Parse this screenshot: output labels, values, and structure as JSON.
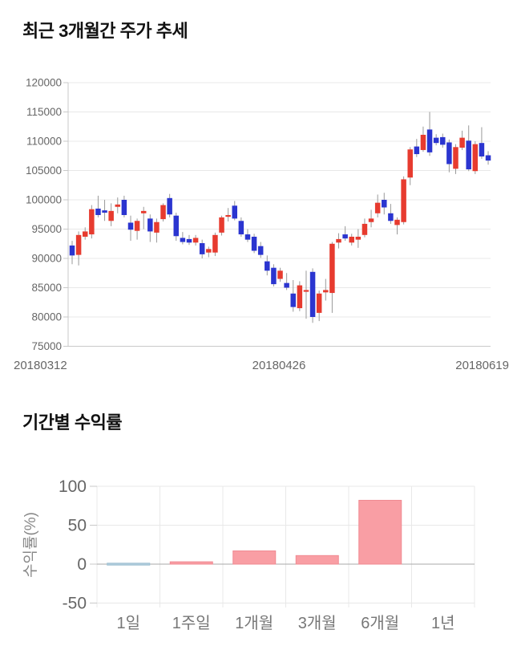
{
  "page": {
    "background": "#ffffff"
  },
  "chart_data": [
    {
      "type": "candlestick",
      "title": "최근 3개월간 주가 추세",
      "ylim": [
        75000,
        120000
      ],
      "grid": true,
      "y_tick_labels": [
        120000,
        115000,
        110000,
        105000,
        100000,
        95000,
        90000,
        85000,
        80000,
        75000
      ],
      "x_tick_labels": [
        "20180312",
        "20180426",
        "20180619"
      ],
      "up_color": "#E73B2F",
      "down_color": "#2B35D0",
      "wick_color": "#999999",
      "grid_color": "#e8e8e8",
      "axis_color": "#c9c9c9",
      "tick_text_color": "#666666",
      "candles_ohlc": [
        [
          92200,
          93000,
          89000,
          90500
        ],
        [
          90600,
          94600,
          88800,
          94000
        ],
        [
          93700,
          95300,
          93200,
          94600
        ],
        [
          94100,
          99100,
          93400,
          98400
        ],
        [
          98500,
          100700,
          97000,
          97400
        ],
        [
          98200,
          100000,
          96400,
          97800
        ],
        [
          96400,
          99400,
          95500,
          98100
        ],
        [
          98800,
          100400,
          97700,
          99200
        ],
        [
          100000,
          100700,
          97000,
          97400
        ],
        [
          96100,
          97300,
          93000,
          94900
        ],
        [
          94700,
          96800,
          93200,
          96400
        ],
        [
          97700,
          98800,
          95000,
          98100
        ],
        [
          96800,
          97500,
          92800,
          94600
        ],
        [
          94400,
          96800,
          92700,
          96200
        ],
        [
          96700,
          99400,
          96300,
          99100
        ],
        [
          100300,
          101000,
          97000,
          97500
        ],
        [
          97300,
          97800,
          93000,
          93800
        ],
        [
          93500,
          94500,
          92400,
          92800
        ],
        [
          93300,
          94000,
          92300,
          92700
        ],
        [
          92700,
          94000,
          92200,
          93500
        ],
        [
          92600,
          93200,
          90000,
          90700
        ],
        [
          91000,
          92000,
          90200,
          91600
        ],
        [
          91000,
          94400,
          90400,
          94000
        ],
        [
          94400,
          97300,
          93900,
          97000
        ],
        [
          97100,
          98600,
          96300,
          97400
        ],
        [
          99000,
          99800,
          96500,
          96800
        ],
        [
          96400,
          97000,
          93700,
          94100
        ],
        [
          94100,
          95000,
          92800,
          93200
        ],
        [
          93700,
          94200,
          90900,
          91300
        ],
        [
          92100,
          92800,
          90100,
          90600
        ],
        [
          89500,
          90500,
          87100,
          87900
        ],
        [
          88400,
          89000,
          85200,
          85600
        ],
        [
          86500,
          88400,
          86000,
          87900
        ],
        [
          85800,
          87500,
          84600,
          85000
        ],
        [
          84000,
          86300,
          80900,
          81700
        ],
        [
          81500,
          86100,
          81000,
          85400
        ],
        [
          84300,
          87900,
          79700,
          84600
        ],
        [
          87700,
          88300,
          79000,
          80000
        ],
        [
          80700,
          84500,
          79300,
          84000
        ],
        [
          84200,
          86500,
          82800,
          84600
        ],
        [
          84100,
          92800,
          80700,
          92500
        ],
        [
          92700,
          94300,
          91700,
          93300
        ],
        [
          94100,
          95500,
          93000,
          93400
        ],
        [
          92700,
          94200,
          92200,
          93700
        ],
        [
          93200,
          95000,
          91800,
          93700
        ],
        [
          94000,
          96800,
          93600,
          95900
        ],
        [
          96200,
          98300,
          95300,
          96800
        ],
        [
          97700,
          100900,
          97000,
          99500
        ],
        [
          100000,
          101200,
          97500,
          98700
        ],
        [
          97700,
          99300,
          95900,
          96400
        ],
        [
          95700,
          97000,
          94100,
          96600
        ],
        [
          96200,
          104000,
          95800,
          103500
        ],
        [
          103800,
          109000,
          102500,
          108600
        ],
        [
          109100,
          110400,
          107300,
          107800
        ],
        [
          108500,
          112500,
          108200,
          111100
        ],
        [
          112000,
          115000,
          107500,
          108100
        ],
        [
          110600,
          111200,
          109300,
          109700
        ],
        [
          110700,
          111300,
          108900,
          109400
        ],
        [
          109800,
          110300,
          104700,
          106100
        ],
        [
          105300,
          109500,
          104400,
          109000
        ],
        [
          108900,
          111800,
          108500,
          110600
        ],
        [
          110100,
          112700,
          104900,
          105200
        ],
        [
          104900,
          110000,
          104400,
          109500
        ],
        [
          109700,
          112400,
          107000,
          107400
        ],
        [
          107600,
          108300,
          106000,
          106700
        ]
      ]
    },
    {
      "type": "bar",
      "title": "기간별 수익률",
      "ylabel": "수익률(%)",
      "ylim": [
        -50,
        100
      ],
      "grid": true,
      "y_ticks": [
        100,
        50,
        0,
        -50
      ],
      "categories": [
        "1일",
        "1주일",
        "1개월",
        "3개월",
        "6개월",
        "1년"
      ],
      "values": [
        -0.5,
        3,
        17,
        11,
        82,
        0
      ],
      "bar_color": "#F99EA4",
      "bar_border_color": "#F08A92",
      "negative_bar_color": "#AECBDC",
      "negative_bar_border_color": "#9FC0D2",
      "grid_color": "#e8e8e8",
      "zero_line_color": "#a8a8a8",
      "axis_color": "#c9c9c9",
      "tick_text_color": "#666666",
      "category_text_color": "#777777",
      "ylabel_color": "#888888"
    }
  ]
}
